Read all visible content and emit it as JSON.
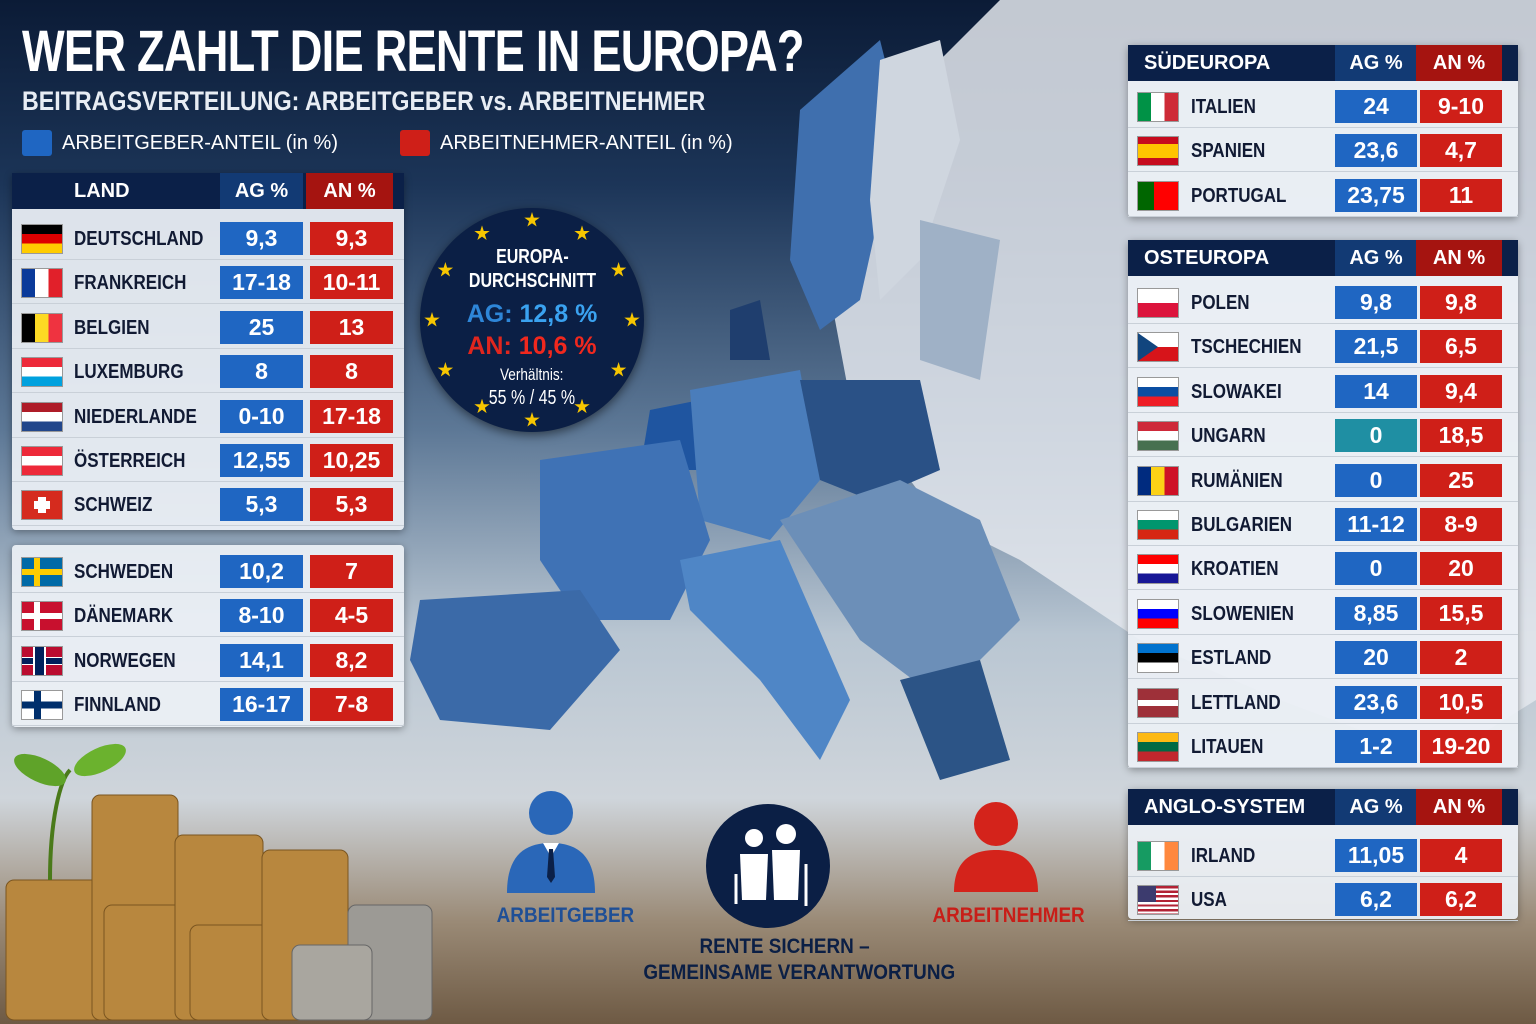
{
  "header": {
    "title": "WER ZAHLT DIE RENTE IN EUROPA?",
    "subtitle": "BEITRAGSVERTEILUNG: ARBEITGEBER vs. ARBEITNEHMER"
  },
  "legend": {
    "employer": "ARBEITGEBER-ANTEIL (in %)",
    "employee": "ARBEITNEHMER-ANTEIL (in %)",
    "employer_color": "#1f66c2",
    "employee_color": "#cf1f18"
  },
  "west": {
    "header": {
      "land": "LAND",
      "ag": "AG %",
      "an": "AN %"
    },
    "rows": [
      {
        "flag": "germany-flag",
        "cc": "de",
        "name": "DEUTSCHLAND",
        "ag": "9,3",
        "an": "9,3"
      },
      {
        "flag": "france-flag",
        "cc": "fr",
        "name": "FRANKREICH",
        "ag": "17-18",
        "an": "10-11"
      },
      {
        "flag": "belgium-flag",
        "cc": "be",
        "name": "BELGIEN",
        "ag": "25",
        "an": "13"
      },
      {
        "flag": "luxembourg-flag",
        "cc": "lu",
        "name": "LUXEMBURG",
        "ag": "8",
        "an": "8"
      },
      {
        "flag": "netherlands-flag",
        "cc": "nl",
        "name": "NIEDERLANDE",
        "ag": "0-10",
        "an": "17-18"
      },
      {
        "flag": "austria-flag",
        "cc": "at",
        "name": "ÖSTERREICH",
        "ag": "12,55",
        "an": "10,25"
      },
      {
        "flag": "switzerland-flag",
        "cc": "ch",
        "name": "SCHWEIZ",
        "ag": "5,3",
        "an": "5,3"
      }
    ]
  },
  "north": {
    "rows": [
      {
        "flag": "sweden-flag",
        "cc": "se",
        "name": "SCHWEDEN",
        "ag": "10,2",
        "an": "7"
      },
      {
        "flag": "denmark-flag",
        "cc": "dk",
        "name": "DÄNEMARK",
        "ag": "8-10",
        "an": "4-5"
      },
      {
        "flag": "norway-flag",
        "cc": "no",
        "name": "NORWEGEN",
        "ag": "14,1",
        "an": "8,2"
      },
      {
        "flag": "finland-flag",
        "cc": "fi",
        "name": "FINNLAND",
        "ag": "16-17",
        "an": "7-8"
      }
    ]
  },
  "south": {
    "header": {
      "land": "SÜDEUROPA",
      "ag": "AG %",
      "an": "AN %"
    },
    "rows": [
      {
        "flag": "italy-flag",
        "cc": "it",
        "name": "ITALIEN",
        "ag": "24",
        "an": "9-10"
      },
      {
        "flag": "spain-flag",
        "cc": "es",
        "name": "SPANIEN",
        "ag": "23,6",
        "an": "4,7"
      },
      {
        "flag": "portugal-flag",
        "cc": "pt",
        "name": "PORTUGAL",
        "ag": "23,75",
        "an": "11"
      }
    ]
  },
  "east": {
    "header": {
      "land": "OSTEUROPA",
      "ag": "AG %",
      "an": "AN %"
    },
    "rows": [
      {
        "flag": "poland-flag",
        "cc": "pl",
        "name": "POLEN",
        "ag": "9,8",
        "an": "9,8"
      },
      {
        "flag": "czechia-flag",
        "cc": "cz",
        "name": "TSCHECHIEN",
        "ag": "21,5",
        "an": "6,5"
      },
      {
        "flag": "slovakia-flag",
        "cc": "sk",
        "name": "SLOWAKEI",
        "ag": "14",
        "an": "9,4"
      },
      {
        "flag": "hungary-flag",
        "cc": "hu",
        "name": "UNGARN",
        "ag": "0",
        "an": "18,5",
        "ag_color": "#1f8fa3"
      },
      {
        "flag": "romania-flag",
        "cc": "ro",
        "name": "RUMÄNIEN",
        "ag": "0",
        "an": "25"
      },
      {
        "flag": "bulgaria-flag",
        "cc": "bg",
        "name": "BULGARIEN",
        "ag": "11-12",
        "an": "8-9"
      },
      {
        "flag": "croatia-flag",
        "cc": "hr",
        "name": "KROATIEN",
        "ag": "0",
        "an": "20"
      },
      {
        "flag": "slovenia-flag",
        "cc": "si",
        "name": "SLOWENIEN",
        "ag": "8,85",
        "an": "15,5"
      },
      {
        "flag": "estonia-flag",
        "cc": "ee",
        "name": "ESTLAND",
        "ag": "20",
        "an": "2"
      },
      {
        "flag": "latvia-flag",
        "cc": "lv",
        "name": "LETTLAND",
        "ag": "23,6",
        "an": "10,5"
      },
      {
        "flag": "lithuania-flag",
        "cc": "lt",
        "name": "LITAUEN",
        "ag": "1-2",
        "an": "19-20"
      }
    ]
  },
  "anglo": {
    "header": {
      "land": "ANGLO-SYSTEM",
      "ag": "AG %",
      "an": "AN %"
    },
    "rows": [
      {
        "flag": "ireland-flag",
        "cc": "ie",
        "name": "IRLAND",
        "ag": "11,05",
        "an": "4"
      },
      {
        "flag": "usa-flag",
        "cc": "us",
        "name": "USA",
        "ag": "6,2",
        "an": "6,2"
      }
    ]
  },
  "average": {
    "title1": "EUROPA-",
    "title2": "DURCHSCHNITT",
    "ag_label": "AG:",
    "ag_value": "12,8 %",
    "an_label": "AN:",
    "an_value": "10,6 %",
    "ratio_label": "Verhältnis:",
    "ratio_value": "55 % / 45 %"
  },
  "bottom": {
    "employer": "ARBEITGEBER",
    "employee": "ARBEITNEHMER",
    "center1": "RENTE SICHERN –",
    "center2": "GEMEINSAME VERANTWORTUNG"
  }
}
